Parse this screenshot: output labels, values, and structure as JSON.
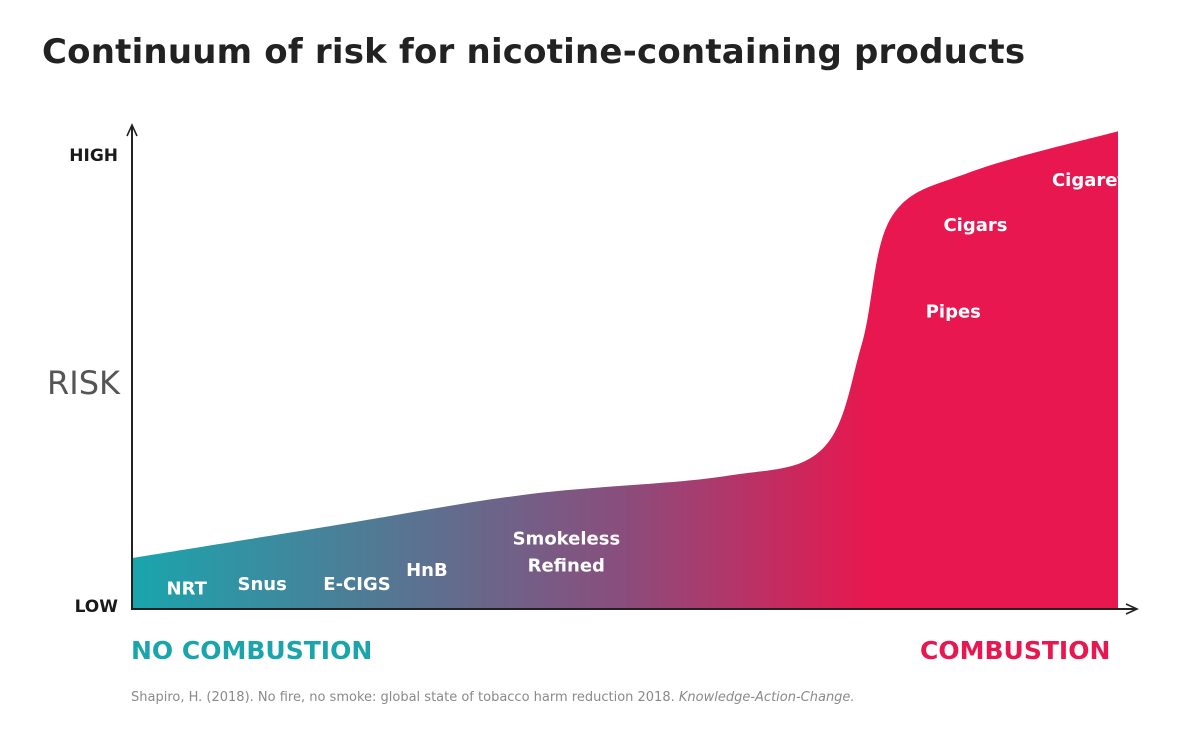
{
  "title": "Continuum of risk for nicotine-containing products",
  "chart_data": {
    "type": "area",
    "title": "Continuum of risk for nicotine-containing products",
    "ylabel": "RISK",
    "y_axis_ticks": [
      "HIGH",
      "LOW"
    ],
    "x_axis_labels": {
      "left": "NO COMBUSTION",
      "right": "COMBUSTION"
    },
    "colors": {
      "no_combustion": "#1aa5ad",
      "mid": "#8a4d7c",
      "combustion": "#e8174f"
    },
    "x_range": [
      0,
      1
    ],
    "y_range": [
      0,
      1
    ],
    "curve": [
      {
        "x": 0.0,
        "y": 0.11
      },
      {
        "x": 0.2,
        "y": 0.18
      },
      {
        "x": 0.4,
        "y": 0.25
      },
      {
        "x": 0.6,
        "y": 0.29
      },
      {
        "x": 0.7,
        "y": 0.35
      },
      {
        "x": 0.74,
        "y": 0.58
      },
      {
        "x": 0.77,
        "y": 0.86
      },
      {
        "x": 0.85,
        "y": 0.96
      },
      {
        "x": 1.0,
        "y": 1.05
      }
    ],
    "products": [
      {
        "label": "NRT",
        "x": 0.035,
        "y": 0.03,
        "label2": ""
      },
      {
        "label": "Snus",
        "x": 0.107,
        "y": 0.04,
        "label2": ""
      },
      {
        "label": "E-CIGS",
        "x": 0.194,
        "y": 0.04,
        "label2": ""
      },
      {
        "label": "HnB",
        "x": 0.278,
        "y": 0.07,
        "label2": ""
      },
      {
        "label": "Smokeless",
        "x": 0.386,
        "y": 0.14,
        "label2": "Refined"
      },
      {
        "label": "Pipes",
        "x": 0.805,
        "y": 0.64,
        "label2": ""
      },
      {
        "label": "Cigars",
        "x": 0.823,
        "y": 0.83,
        "label2": ""
      },
      {
        "label": "Cigarettes",
        "x": 0.933,
        "y": 0.93,
        "label2": ""
      }
    ]
  },
  "source": {
    "text": "Shapiro, H. (2018). No fire, no smoke: global state of tobacco harm reduction 2018.",
    "italic": "Knowledge-Action-Change."
  }
}
